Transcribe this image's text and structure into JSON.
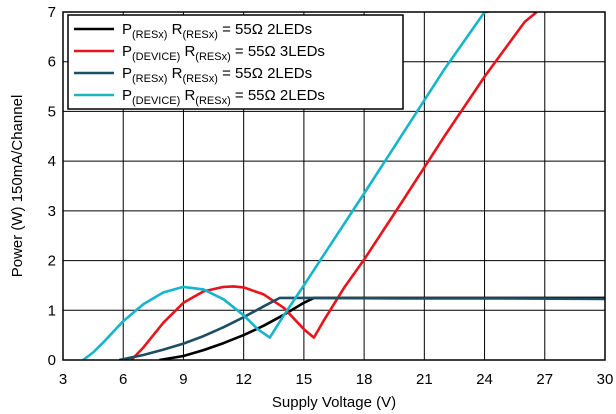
{
  "chart_data": {
    "type": "line",
    "title": "",
    "xlabel": "Supply Voltage (V)",
    "ylabel": "Power (W) 150mA/Channel",
    "xlim": [
      3,
      30
    ],
    "ylim": [
      0,
      7
    ],
    "xticks": [
      "3",
      "6",
      "9",
      "12",
      "15",
      "18",
      "21",
      "24",
      "27",
      "30"
    ],
    "yticks": [
      "0",
      "1",
      "2",
      "3",
      "4",
      "5",
      "6",
      "7"
    ],
    "grid": true,
    "legend_position": "top-left",
    "series": [
      {
        "name": "P(RESx) R(RESx) = 55Ω 2LEDs",
        "name_parts": [
          [
            "P",
            ""
          ],
          [
            "(RESx)",
            "sub"
          ],
          [
            " R",
            ""
          ],
          [
            "(RESx)",
            "sub"
          ],
          [
            " = 55Ω 2LEDs",
            ""
          ]
        ],
        "color": "#000000",
        "x": [
          7.8,
          9,
          10,
          11,
          12,
          13,
          14,
          15,
          15.5,
          30
        ],
        "y": [
          0.0,
          0.08,
          0.2,
          0.34,
          0.5,
          0.69,
          0.91,
          1.15,
          1.25,
          1.25
        ]
      },
      {
        "name": "P(DEVICE) R(RESx) = 55Ω 3LEDs",
        "name_parts": [
          [
            "P",
            ""
          ],
          [
            "(DEVICE)",
            "sub"
          ],
          [
            " R",
            ""
          ],
          [
            "(RESx)",
            "sub"
          ],
          [
            " = 55Ω 3LEDs",
            ""
          ]
        ],
        "color": "#e8141b",
        "x": [
          6.4,
          7,
          8,
          9,
          10,
          11,
          11.5,
          12,
          13,
          14,
          15,
          15.5,
          16,
          17,
          18,
          20,
          22,
          24,
          26,
          26.6
        ],
        "y": [
          0.0,
          0.25,
          0.75,
          1.15,
          1.38,
          1.47,
          1.48,
          1.46,
          1.32,
          1.05,
          0.62,
          0.45,
          0.8,
          1.45,
          2.02,
          3.25,
          4.5,
          5.7,
          6.8,
          7.0
        ]
      },
      {
        "name": "P(RESx) R(RESx) = 55Ω 2LEDs",
        "name_parts": [
          [
            "P",
            ""
          ],
          [
            "(RESx)",
            "sub"
          ],
          [
            " R",
            ""
          ],
          [
            "(RESx)",
            "sub"
          ],
          [
            " = 55Ω 2LEDs",
            ""
          ]
        ],
        "color": "#1f4e63",
        "x": [
          5.8,
          7,
          8,
          9,
          10,
          11,
          12,
          13,
          13.8,
          14.5,
          15.5,
          20,
          25,
          30
        ],
        "y": [
          0.0,
          0.1,
          0.21,
          0.33,
          0.48,
          0.66,
          0.86,
          1.08,
          1.25,
          1.25,
          1.25,
          1.24,
          1.24,
          1.23
        ]
      },
      {
        "name": "P(DEVICE) R(RESx) = 55Ω 2LEDs",
        "name_parts": [
          [
            "P",
            ""
          ],
          [
            "(DEVICE)",
            "sub"
          ],
          [
            " R",
            ""
          ],
          [
            "(RESx)",
            "sub"
          ],
          [
            " = 55Ω 2LEDs",
            ""
          ]
        ],
        "color": "#17b5cc",
        "x": [
          4.0,
          4.5,
          5,
          6,
          7,
          8,
          9,
          10,
          11,
          12,
          12.7,
          13.3,
          14,
          15,
          16,
          18,
          20,
          22,
          24,
          24.2
        ],
        "y": [
          0.0,
          0.15,
          0.35,
          0.78,
          1.12,
          1.36,
          1.47,
          1.42,
          1.22,
          0.9,
          0.62,
          0.45,
          0.9,
          1.5,
          2.12,
          3.35,
          4.6,
          5.85,
          7.0,
          7.0
        ]
      }
    ]
  }
}
